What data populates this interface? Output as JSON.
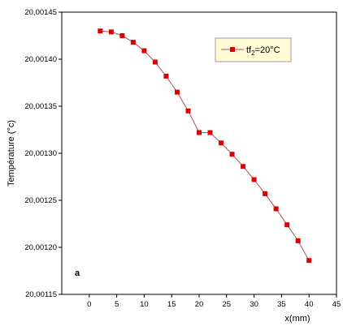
{
  "chart_data": {
    "type": "line",
    "xlabel": "x(mm)",
    "ylabel": "Température (°c)",
    "panel_label": "a",
    "xlim": [
      -5,
      45
    ],
    "ylim": [
      20.00115,
      20.00145
    ],
    "x_ticks": [
      "0",
      "5",
      "10",
      "15",
      "20",
      "25",
      "30",
      "35",
      "40",
      "45"
    ],
    "y_ticks": [
      "20,00115",
      "20,00120",
      "20,00125",
      "20,00130",
      "20,00135",
      "20,00140",
      "20,00145"
    ],
    "grid": false,
    "legend_position": "top-right",
    "series": [
      {
        "name": "tf",
        "name_sub": "2",
        "name_suffix": "=20°C",
        "color": "#e00000",
        "marker": "square",
        "x": [
          2,
          4,
          6,
          8,
          10,
          12,
          14,
          16,
          18,
          20,
          22,
          24,
          26,
          28,
          30,
          32,
          34,
          36,
          38,
          40
        ],
        "y": [
          20.00143,
          20.001429,
          20.001425,
          20.001418,
          20.001409,
          20.001397,
          20.001382,
          20.001365,
          20.001345,
          20.001322,
          20.001322,
          20.001311,
          20.001299,
          20.001286,
          20.001272,
          20.001257,
          20.001241,
          20.001224,
          20.001207,
          20.001186
        ]
      }
    ]
  }
}
